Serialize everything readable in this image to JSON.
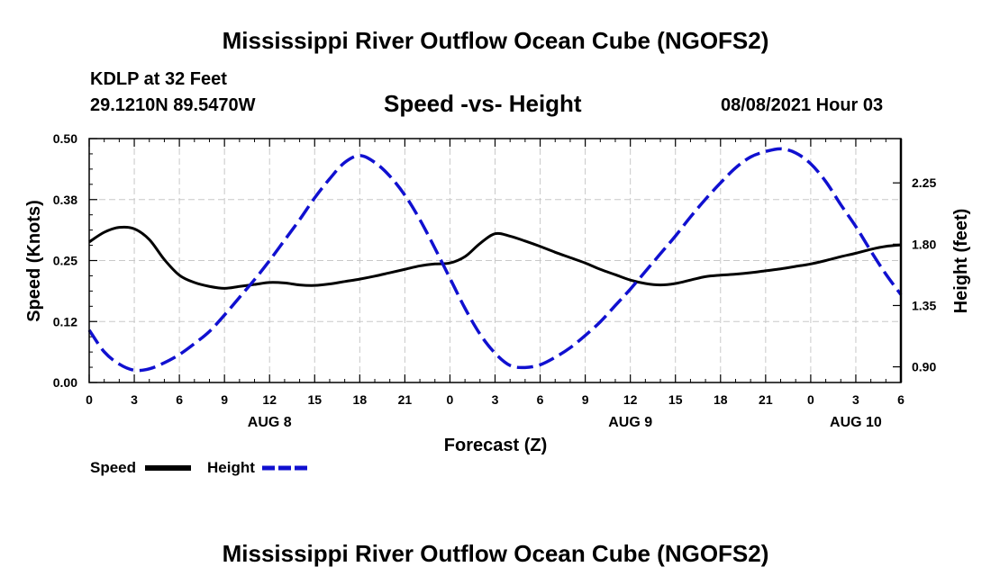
{
  "page": {
    "title_top": "Mississippi River Outflow Ocean Cube (NGOFS2)",
    "title_bottom": "Mississippi River Outflow Ocean Cube (NGOFS2)",
    "station": "KDLP at 32 Feet",
    "coords": "29.1210N  89.5470W",
    "subtitle": "Speed -vs- Height",
    "datetime": "08/08/2021 Hour 03"
  },
  "colors": {
    "speed": "#000000",
    "height": "#1010d0",
    "grid": "#c8c8c8"
  },
  "chart_data": {
    "type": "line",
    "title": "Speed -vs- Height",
    "xlabel": "Forecast (Z)",
    "ylabel": "Speed (Knots)",
    "y2label": "Height (feet)",
    "x_unit": "hours from 2021-08-08 00Z",
    "xlim": [
      0,
      54
    ],
    "ylim": [
      0,
      0.5
    ],
    "y2lim": [
      0.785,
      2.575
    ],
    "x_ticks": [
      0,
      3,
      6,
      9,
      12,
      15,
      18,
      21,
      24,
      27,
      30,
      33,
      36,
      39,
      42,
      45,
      48,
      51,
      54
    ],
    "x_tick_labels": [
      "0",
      "3",
      "6",
      "9",
      "12",
      "15",
      "18",
      "21",
      "0",
      "3",
      "6",
      "9",
      "12",
      "15",
      "18",
      "21",
      "0",
      "3",
      "6"
    ],
    "y_ticks": [
      0,
      0.125,
      0.25,
      0.375,
      0.5
    ],
    "y_tick_labels": [
      "0.00",
      "0.12",
      "0.25",
      "0.38",
      "0.50"
    ],
    "y2_ticks": [
      0.9,
      1.35,
      1.8,
      2.25
    ],
    "y2_tick_labels": [
      "0.90",
      "1.35",
      "1.80",
      "2.25"
    ],
    "date_labels": [
      {
        "x": 12,
        "label": "AUG 8"
      },
      {
        "x": 36,
        "label": "AUG 9"
      },
      {
        "x": 51,
        "label": "AUG 10"
      }
    ],
    "grid": true,
    "legend_position": "bottom-left",
    "series": [
      {
        "name": "Speed",
        "axis": "left",
        "style": "solid",
        "x": [
          0,
          1,
          2,
          3,
          4,
          5,
          6,
          7,
          8,
          9,
          10,
          11,
          12,
          13,
          14,
          15,
          16,
          17,
          18,
          19,
          20,
          21,
          22,
          23,
          24,
          25,
          26,
          27,
          28,
          29,
          30,
          31,
          32,
          33,
          34,
          35,
          36,
          37,
          38,
          39,
          40,
          41,
          42,
          43,
          44,
          45,
          46,
          47,
          48,
          49,
          50,
          51,
          52,
          53,
          54
        ],
        "values": [
          0.288,
          0.308,
          0.318,
          0.315,
          0.293,
          0.252,
          0.22,
          0.205,
          0.197,
          0.193,
          0.197,
          0.201,
          0.205,
          0.204,
          0.2,
          0.199,
          0.202,
          0.207,
          0.212,
          0.218,
          0.225,
          0.232,
          0.239,
          0.243,
          0.245,
          0.258,
          0.285,
          0.305,
          0.3,
          0.29,
          0.279,
          0.267,
          0.256,
          0.245,
          0.232,
          0.221,
          0.21,
          0.203,
          0.2,
          0.203,
          0.21,
          0.217,
          0.22,
          0.222,
          0.225,
          0.229,
          0.233,
          0.238,
          0.243,
          0.25,
          0.258,
          0.265,
          0.273,
          0.279,
          0.282
        ]
      },
      {
        "name": "Height",
        "axis": "right",
        "style": "dashed",
        "x": [
          0,
          1,
          2,
          3,
          4,
          5,
          6,
          7,
          8,
          9,
          10,
          11,
          12,
          13,
          14,
          15,
          16,
          17,
          18,
          19,
          20,
          21,
          22,
          23,
          24,
          25,
          26,
          27,
          28,
          29,
          30,
          31,
          32,
          33,
          34,
          35,
          36,
          37,
          38,
          39,
          40,
          41,
          42,
          43,
          44,
          45,
          46,
          47,
          48,
          49,
          50,
          51,
          52,
          53,
          54
        ],
        "values": [
          1.17,
          1.01,
          0.92,
          0.875,
          0.885,
          0.93,
          0.99,
          1.07,
          1.16,
          1.28,
          1.41,
          1.54,
          1.68,
          1.83,
          1.98,
          2.14,
          2.28,
          2.4,
          2.45,
          2.4,
          2.3,
          2.16,
          1.98,
          1.77,
          1.55,
          1.33,
          1.14,
          1.0,
          0.91,
          0.895,
          0.915,
          0.97,
          1.04,
          1.13,
          1.23,
          1.35,
          1.47,
          1.6,
          1.73,
          1.86,
          2.0,
          2.13,
          2.25,
          2.36,
          2.44,
          2.48,
          2.5,
          2.47,
          2.39,
          2.26,
          2.09,
          1.93,
          1.75,
          1.58,
          1.43
        ]
      }
    ]
  }
}
